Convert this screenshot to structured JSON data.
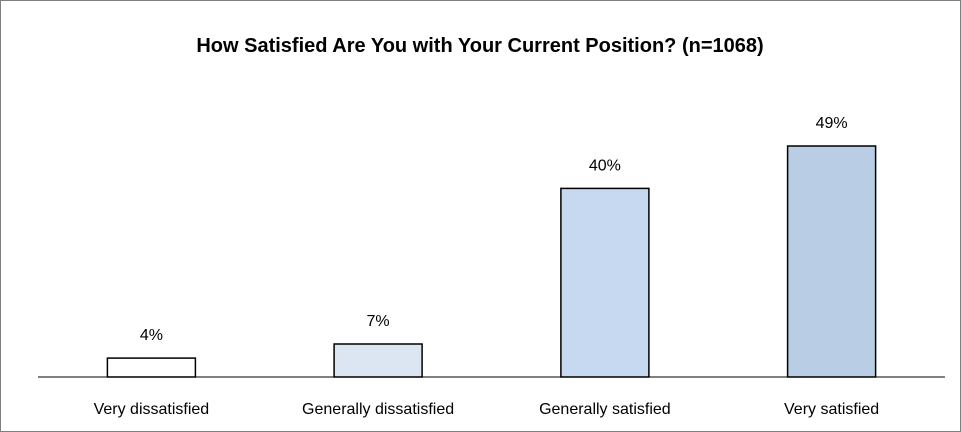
{
  "chart_data": {
    "type": "bar",
    "title": "How Satisfied Are You with Your Current Position? (n=1068)",
    "categories": [
      "Very dissatisfied",
      "Generally dissatisfied",
      "Generally satisfied",
      "Very satisfied"
    ],
    "values": [
      4,
      7,
      40,
      49
    ],
    "data_labels": [
      "4%",
      "7%",
      "40%",
      "49%"
    ],
    "value_unit": "%",
    "xlabel": "",
    "ylabel": "",
    "ylim": [
      0,
      49
    ],
    "grid": false,
    "legend": "none",
    "colors": {
      "bar_fills": [
        "#ffffff",
        "#dce6f2",
        "#c6d9f1",
        "#b9cde5"
      ],
      "bar_stroke": "#000000",
      "axis": "#000000",
      "frame": "#808080",
      "background": "#ffffff"
    }
  }
}
